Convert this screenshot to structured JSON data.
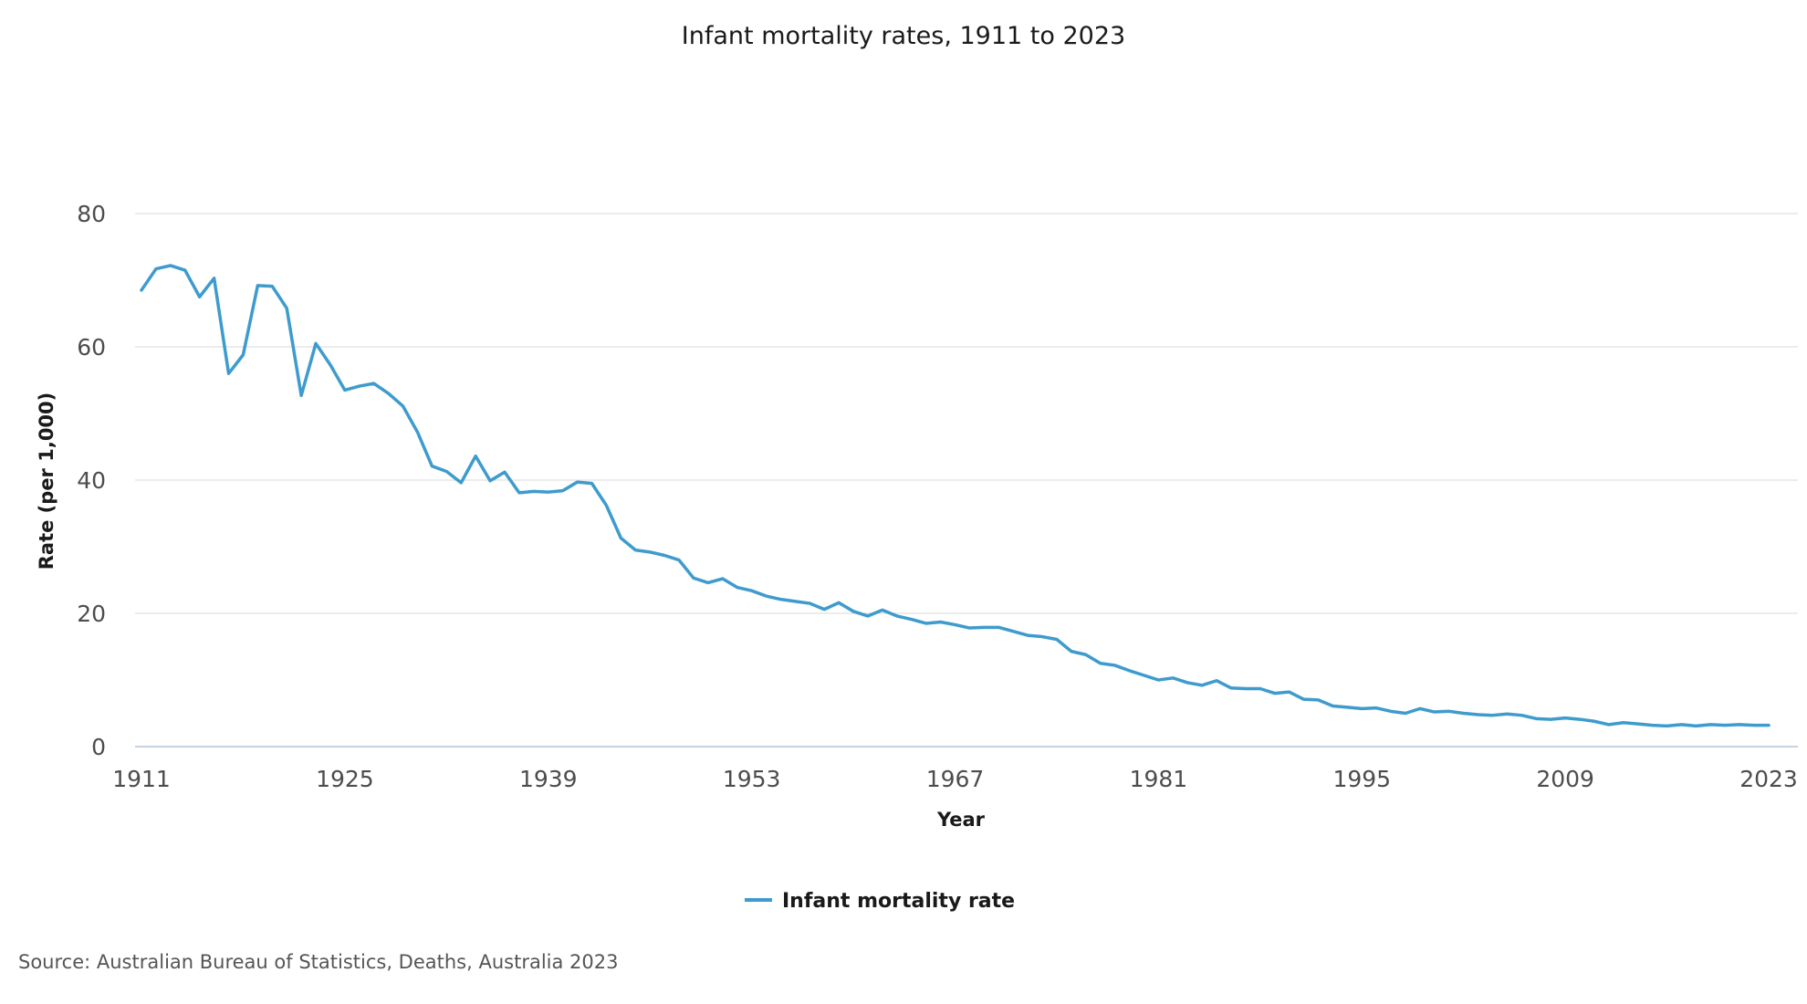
{
  "chart_data": {
    "type": "line",
    "title": "Infant mortality rates, 1911 to 2023",
    "xlabel": "Year",
    "ylabel": "Rate (per 1,000)",
    "xlim": [
      1911,
      2023
    ],
    "ylim": [
      0,
      80
    ],
    "x_ticks": [
      1911,
      1925,
      1939,
      1953,
      1967,
      1981,
      1995,
      2009,
      2023
    ],
    "y_ticks": [
      0,
      20,
      40,
      60,
      80
    ],
    "grid": true,
    "legend_position": "bottom-center",
    "x": [
      1911,
      1912,
      1913,
      1914,
      1915,
      1916,
      1917,
      1918,
      1919,
      1920,
      1921,
      1922,
      1923,
      1924,
      1925,
      1926,
      1927,
      1928,
      1929,
      1930,
      1931,
      1932,
      1933,
      1934,
      1935,
      1936,
      1937,
      1938,
      1939,
      1940,
      1941,
      1942,
      1943,
      1944,
      1945,
      1946,
      1947,
      1948,
      1949,
      1950,
      1951,
      1952,
      1953,
      1954,
      1955,
      1956,
      1957,
      1958,
      1959,
      1960,
      1961,
      1962,
      1963,
      1964,
      1965,
      1966,
      1967,
      1968,
      1969,
      1970,
      1971,
      1972,
      1973,
      1974,
      1975,
      1976,
      1977,
      1978,
      1979,
      1980,
      1981,
      1982,
      1983,
      1984,
      1985,
      1986,
      1987,
      1988,
      1989,
      1990,
      1991,
      1992,
      1993,
      1994,
      1995,
      1996,
      1997,
      1998,
      1999,
      2000,
      2001,
      2002,
      2003,
      2004,
      2005,
      2006,
      2007,
      2008,
      2009,
      2010,
      2011,
      2012,
      2013,
      2014,
      2015,
      2016,
      2017,
      2018,
      2019,
      2020,
      2021,
      2022,
      2023
    ],
    "series": [
      {
        "name": "Infant mortality rate",
        "color": "#3e9bcd",
        "values": [
          68.5,
          71.7,
          72.2,
          71.5,
          67.5,
          70.3,
          56.0,
          58.8,
          69.2,
          69.1,
          65.8,
          52.7,
          60.5,
          57.3,
          53.5,
          54.1,
          54.5,
          53.0,
          51.1,
          47.2,
          42.1,
          41.3,
          39.6,
          43.6,
          39.9,
          41.2,
          38.1,
          38.3,
          38.2,
          38.4,
          39.7,
          39.5,
          36.2,
          31.3,
          29.5,
          29.2,
          28.7,
          28.0,
          25.3,
          24.6,
          25.2,
          23.9,
          23.4,
          22.6,
          22.1,
          21.8,
          21.5,
          20.6,
          21.6,
          20.3,
          19.6,
          20.5,
          19.6,
          19.1,
          18.5,
          18.7,
          18.3,
          17.8,
          17.9,
          17.9,
          17.3,
          16.7,
          16.5,
          16.1,
          14.3,
          13.8,
          12.5,
          12.2,
          11.4,
          10.7,
          10.0,
          10.3,
          9.6,
          9.2,
          9.9,
          8.8,
          8.7,
          8.7,
          8.0,
          8.2,
          7.1,
          7.0,
          6.1,
          5.9,
          5.7,
          5.8,
          5.3,
          5.0,
          5.7,
          5.2,
          5.3,
          5.0,
          4.8,
          4.7,
          4.9,
          4.7,
          4.2,
          4.1,
          4.3,
          4.1,
          3.8,
          3.3,
          3.6,
          3.4,
          3.2,
          3.1,
          3.3,
          3.1,
          3.3,
          3.2,
          3.3,
          3.2,
          3.2
        ]
      }
    ],
    "source": "Source: Australian Bureau of Statistics, Deaths, Australia 2023"
  }
}
